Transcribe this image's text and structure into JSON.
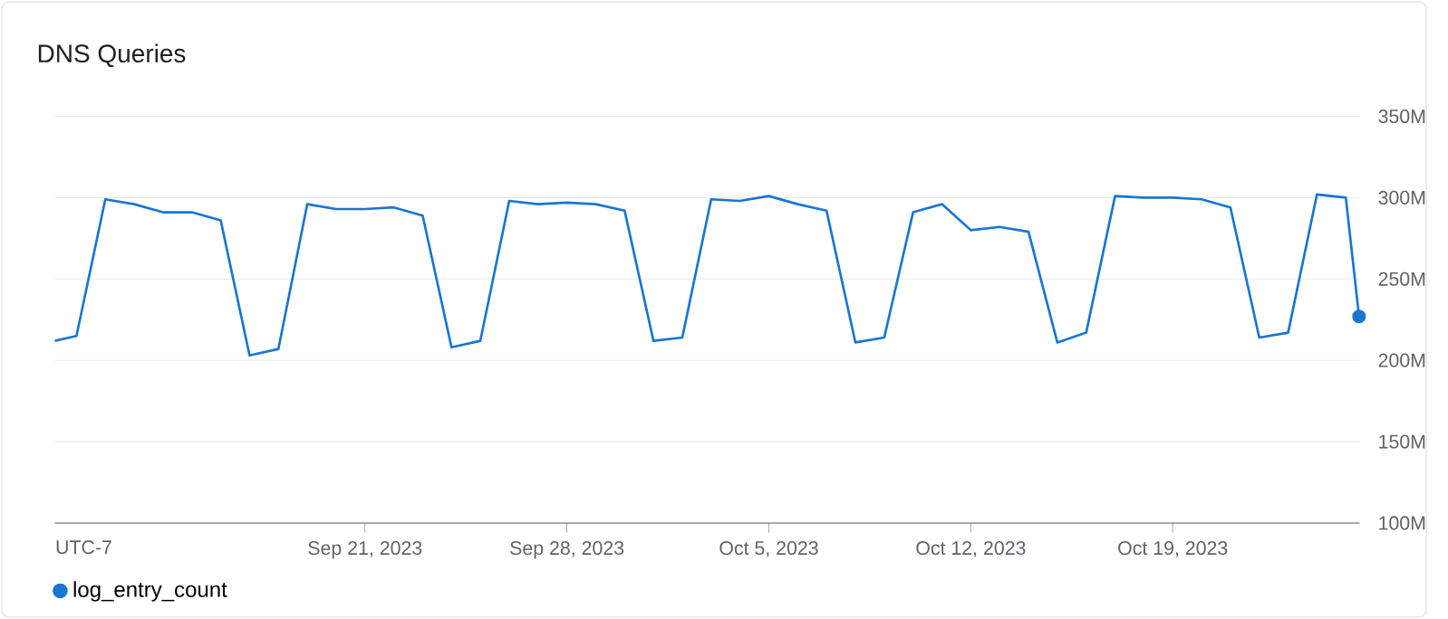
{
  "chart_data": {
    "type": "line",
    "title": "DNS Queries",
    "annotations": [
      "UTC-7"
    ],
    "xlim": [
      "2023-09-10T06:00",
      "2023-10-25T11:30"
    ],
    "xticks": [
      {
        "value": "2023-09-21",
        "label": "Sep 21, 2023"
      },
      {
        "value": "2023-09-28",
        "label": "Sep 28, 2023"
      },
      {
        "value": "2023-10-05",
        "label": "Oct 5, 2023"
      },
      {
        "value": "2023-10-12",
        "label": "Oct 12, 2023"
      },
      {
        "value": "2023-10-19",
        "label": "Oct 19, 2023"
      }
    ],
    "ylim": [
      100,
      350
    ],
    "yticks": [
      {
        "value": 100,
        "label": "100M"
      },
      {
        "value": 150,
        "label": "150M"
      },
      {
        "value": 200,
        "label": "200M"
      },
      {
        "value": 250,
        "label": "250M"
      },
      {
        "value": 300,
        "label": "300M"
      },
      {
        "value": 350,
        "label": "350M"
      }
    ],
    "grid": "y",
    "legend": "bottom",
    "series": [
      {
        "name": "log_entry_count",
        "color": "#1976d2",
        "x": [
          "2023-09-10T06:00",
          "2023-09-11",
          "2023-09-12",
          "2023-09-13",
          "2023-09-14",
          "2023-09-15",
          "2023-09-16",
          "2023-09-17",
          "2023-09-18",
          "2023-09-19",
          "2023-09-20",
          "2023-09-21",
          "2023-09-22",
          "2023-09-23",
          "2023-09-24",
          "2023-09-25",
          "2023-09-26",
          "2023-09-27",
          "2023-09-28",
          "2023-09-29",
          "2023-09-30",
          "2023-10-01",
          "2023-10-02",
          "2023-10-03",
          "2023-10-04",
          "2023-10-05",
          "2023-10-06",
          "2023-10-07",
          "2023-10-08",
          "2023-10-09",
          "2023-10-10",
          "2023-10-11",
          "2023-10-12",
          "2023-10-13",
          "2023-10-14",
          "2023-10-15",
          "2023-10-16",
          "2023-10-17",
          "2023-10-18",
          "2023-10-19",
          "2023-10-20",
          "2023-10-21",
          "2023-10-22",
          "2023-10-23",
          "2023-10-24",
          "2023-10-25",
          "2023-10-25T11:00"
        ],
        "values": [
          212,
          215,
          299,
          296,
          291,
          291,
          286,
          203,
          207,
          296,
          293,
          293,
          294,
          289,
          208,
          212,
          298,
          296,
          297,
          296,
          292,
          212,
          214,
          299,
          298,
          301,
          296,
          292,
          211,
          214,
          291,
          296,
          280,
          282,
          279,
          211,
          217,
          301,
          300,
          300,
          299,
          294,
          214,
          217,
          302,
          300,
          227
        ]
      },
      {
        "type": "scatter",
        "marker": "circle",
        "color": "#1976d2",
        "x": [
          "2023-10-25T11:00"
        ],
        "values": [
          227
        ]
      }
    ]
  }
}
